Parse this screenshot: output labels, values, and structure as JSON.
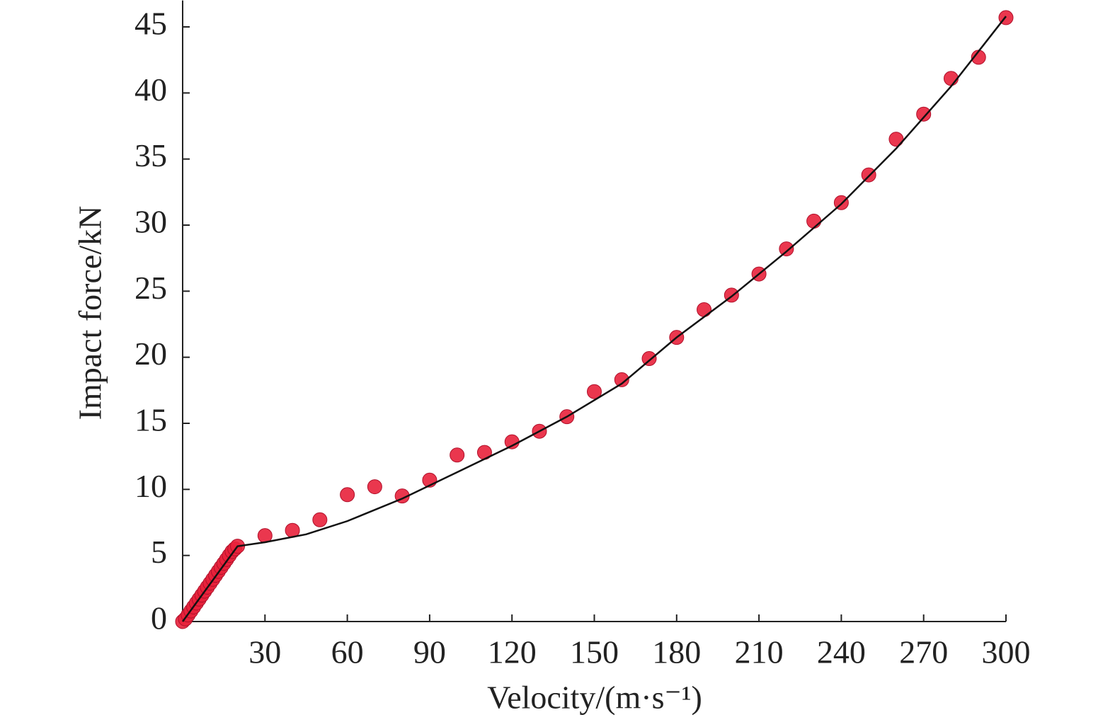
{
  "chart_data": {
    "type": "scatter",
    "xlabel": "Velocity/(m·s⁻¹)",
    "ylabel": "Impact force/kN",
    "xlim": [
      0,
      300
    ],
    "ylim": [
      0,
      47
    ],
    "xticks": [
      30,
      60,
      90,
      120,
      150,
      180,
      210,
      240,
      270,
      300
    ],
    "yticks": [
      0,
      5,
      10,
      15,
      20,
      25,
      30,
      35,
      40,
      45
    ],
    "series": [
      {
        "mode": "markers",
        "color": "#e8213b",
        "x": [
          0,
          1,
          2,
          3,
          4,
          5,
          6,
          7,
          8,
          9,
          10,
          11,
          12,
          13,
          14,
          15,
          16,
          17,
          18,
          19,
          20,
          30,
          40,
          50,
          60,
          70,
          80,
          90,
          100,
          110,
          120,
          130,
          140,
          150,
          160,
          170,
          180,
          190,
          200,
          210,
          220,
          230,
          240,
          250,
          260,
          270,
          280,
          290,
          300
        ],
        "values": [
          0,
          0.2,
          0.5,
          0.8,
          1.1,
          1.4,
          1.7,
          2.0,
          2.3,
          2.6,
          2.9,
          3.2,
          3.5,
          3.8,
          4.1,
          4.4,
          4.7,
          5.0,
          5.3,
          5.5,
          5.7,
          6.5,
          6.9,
          7.7,
          9.6,
          10.2,
          9.5,
          10.7,
          12.6,
          12.8,
          13.6,
          14.4,
          15.5,
          17.4,
          18.3,
          19.9,
          21.5,
          23.6,
          24.7,
          26.3,
          28.2,
          30.3,
          31.7,
          33.8,
          36.5,
          38.4,
          41.1,
          42.7,
          45.7
        ]
      },
      {
        "mode": "line",
        "color": "#111111",
        "x": [
          0,
          20,
          30,
          45,
          60,
          80,
          100,
          120,
          140,
          160,
          180,
          200,
          220,
          240,
          260,
          280,
          300
        ],
        "values": [
          0,
          5.7,
          6.0,
          6.6,
          7.6,
          9.3,
          11.3,
          13.3,
          15.5,
          18.0,
          21.5,
          24.6,
          28.0,
          31.6,
          35.8,
          40.5,
          45.8
        ]
      }
    ]
  }
}
